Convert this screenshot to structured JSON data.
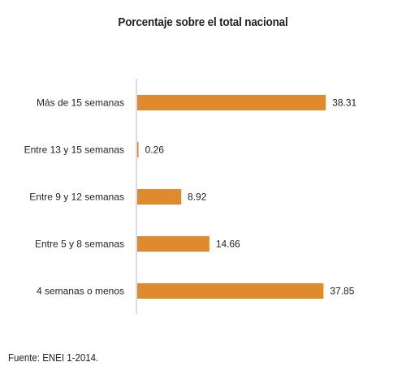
{
  "chart_data": {
    "type": "bar",
    "orientation": "horizontal",
    "title": "Porcentaje sobre el total nacional",
    "categories": [
      "Más de 15 semanas",
      "Entre 13 y 15 semanas",
      "Entre 9 y 12 semanas",
      "Entre 5 y 8 semanas",
      "4 semanas o menos"
    ],
    "values": [
      38.31,
      0.26,
      8.92,
      14.66,
      37.85
    ],
    "value_labels": [
      "38.31",
      "0.26",
      "8.92",
      "14.66",
      "37.85"
    ],
    "xlim": [
      0,
      40
    ],
    "grid": false,
    "bar_color": "#E08A2E"
  },
  "source": "Fuente: ENEI 1-2014."
}
